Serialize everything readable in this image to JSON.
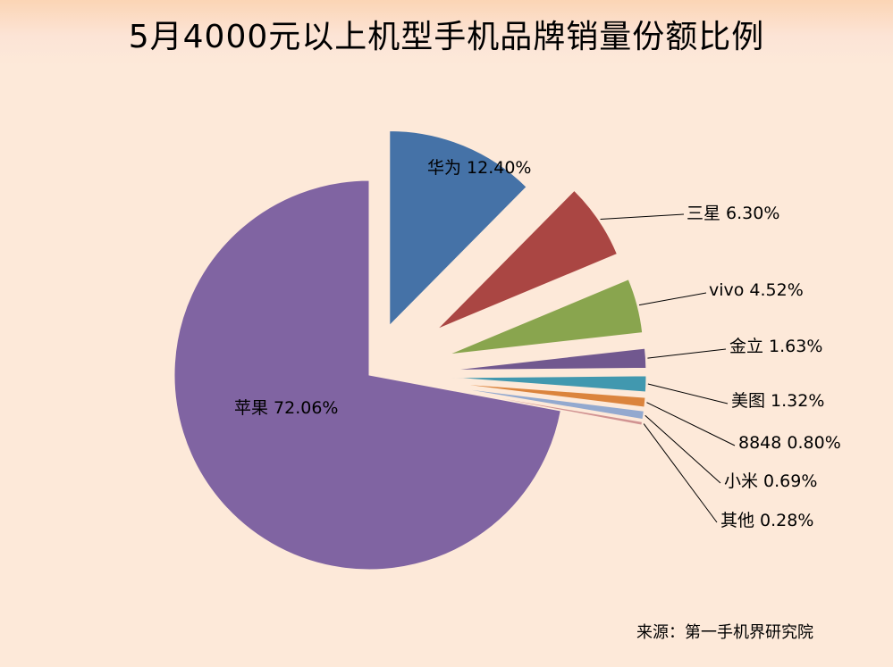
{
  "title": "5月4000元以上机型手机品牌销量份额比例",
  "source": "来源：第一手机界研究院",
  "chart_data": {
    "type": "pie",
    "title": "5月4000元以上机型手机品牌销量份额比例",
    "slices": [
      {
        "name": "华为",
        "value": 12.4,
        "label": "华为 12.40%",
        "color": "#4572A7"
      },
      {
        "name": "三星",
        "value": 6.3,
        "label": "三星 6.30%",
        "color": "#AA4643"
      },
      {
        "name": "vivo",
        "value": 4.52,
        "label": "vivo 4.52%",
        "color": "#89A54E"
      },
      {
        "name": "金立",
        "value": 1.63,
        "label": "金立 1.63%",
        "color": "#71588F"
      },
      {
        "name": "美图",
        "value": 1.32,
        "label": "美图 1.32%",
        "color": "#4198AF"
      },
      {
        "name": "8848",
        "value": 0.8,
        "label": "8848 0.80%",
        "color": "#DB843D"
      },
      {
        "name": "小米",
        "value": 0.69,
        "label": "小米 0.69%",
        "color": "#93A9CF"
      },
      {
        "name": "其他",
        "value": 0.28,
        "label": "其他 0.28%",
        "color": "#D19392"
      },
      {
        "name": "苹果",
        "value": 72.06,
        "label": "苹果 72.06%",
        "color": "#8064A2"
      }
    ],
    "legend": "none",
    "labels": "outside with leader lines; 华为 and 苹果 inside"
  }
}
